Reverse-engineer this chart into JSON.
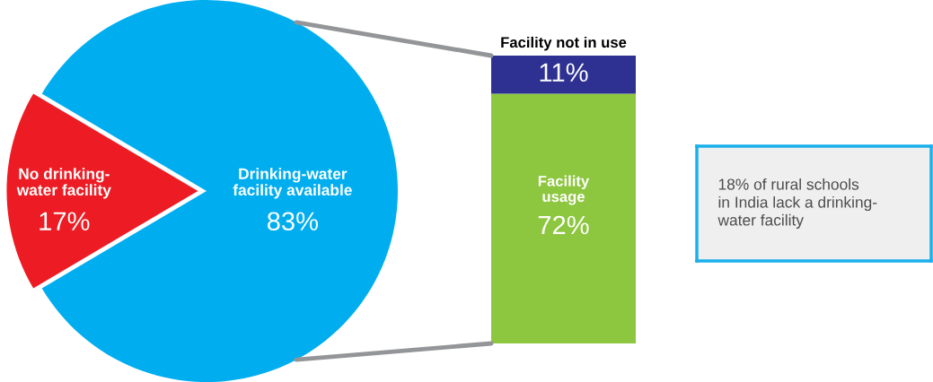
{
  "chart_data": [
    {
      "type": "pie",
      "categories": [
        "No drinking-\nwater facility",
        "Drinking-water\nfacility available"
      ],
      "values": [
        17,
        83
      ],
      "colors": [
        "#ed1c24",
        "#00aeef"
      ],
      "value_labels": [
        "17%",
        "83%"
      ]
    },
    {
      "type": "bar",
      "stacked": true,
      "categories": [
        null
      ],
      "series": [
        {
          "name": "Facility\nusage",
          "color": "#8dc63f",
          "values": [
            72
          ],
          "value_labels": [
            "72%"
          ]
        },
        {
          "name": "Facility not in use",
          "color": "#2e3192",
          "values": [
            11
          ],
          "value_labels": [
            "11%"
          ]
        }
      ],
      "tick_labels": false
    },
    {
      "type": "other",
      "annotations": [
        "18% of rural schools\nin India lack a drinking-\nwater facility"
      ]
    }
  ]
}
